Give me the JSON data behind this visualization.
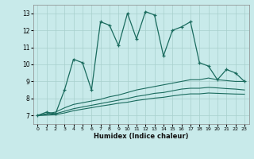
{
  "title": "",
  "xlabel": "Humidex (Indice chaleur)",
  "background_color": "#c8eaea",
  "line_color": "#1a6b5e",
  "grid_color": "#a8d0cc",
  "xlim": [
    -0.5,
    23.5
  ],
  "ylim": [
    6.5,
    13.5
  ],
  "yticks": [
    7,
    8,
    9,
    10,
    11,
    12,
    13
  ],
  "xticks": [
    0,
    1,
    2,
    3,
    4,
    5,
    6,
    7,
    8,
    9,
    10,
    11,
    12,
    13,
    14,
    15,
    16,
    17,
    18,
    19,
    20,
    21,
    22,
    23
  ],
  "line1_x": [
    0,
    1,
    2,
    3,
    4,
    5,
    6,
    7,
    8,
    9,
    10,
    11,
    12,
    13,
    14,
    15,
    16,
    17,
    18,
    19,
    20,
    21,
    22,
    23
  ],
  "line1_y": [
    7.0,
    7.2,
    7.1,
    8.5,
    10.3,
    10.1,
    8.5,
    12.5,
    12.3,
    11.1,
    13.0,
    11.5,
    13.1,
    12.9,
    10.5,
    12.0,
    12.2,
    12.5,
    10.1,
    9.9,
    9.1,
    9.7,
    9.5,
    9.0
  ],
  "line2_x": [
    0,
    1,
    2,
    3,
    4,
    5,
    6,
    7,
    8,
    9,
    10,
    11,
    12,
    13,
    14,
    15,
    16,
    17,
    18,
    19,
    20,
    21,
    22,
    23
  ],
  "line2_y": [
    7.0,
    7.1,
    7.2,
    7.45,
    7.65,
    7.75,
    7.85,
    7.95,
    8.1,
    8.2,
    8.35,
    8.5,
    8.6,
    8.7,
    8.8,
    8.9,
    9.0,
    9.1,
    9.1,
    9.2,
    9.1,
    9.05,
    9.0,
    9.0
  ],
  "line3_x": [
    0,
    1,
    2,
    3,
    4,
    5,
    6,
    7,
    8,
    9,
    10,
    11,
    12,
    13,
    14,
    15,
    16,
    17,
    18,
    19,
    20,
    21,
    22,
    23
  ],
  "line3_y": [
    7.0,
    7.05,
    7.1,
    7.25,
    7.4,
    7.5,
    7.6,
    7.7,
    7.8,
    7.9,
    8.0,
    8.12,
    8.2,
    8.3,
    8.35,
    8.45,
    8.55,
    8.6,
    8.6,
    8.65,
    8.62,
    8.58,
    8.55,
    8.5
  ],
  "line4_x": [
    0,
    1,
    2,
    3,
    4,
    5,
    6,
    7,
    8,
    9,
    10,
    11,
    12,
    13,
    14,
    15,
    16,
    17,
    18,
    19,
    20,
    21,
    22,
    23
  ],
  "line4_y": [
    7.0,
    7.02,
    7.05,
    7.15,
    7.28,
    7.37,
    7.46,
    7.55,
    7.63,
    7.72,
    7.78,
    7.88,
    7.95,
    8.02,
    8.07,
    8.15,
    8.22,
    8.27,
    8.27,
    8.32,
    8.3,
    8.28,
    8.26,
    8.25
  ]
}
